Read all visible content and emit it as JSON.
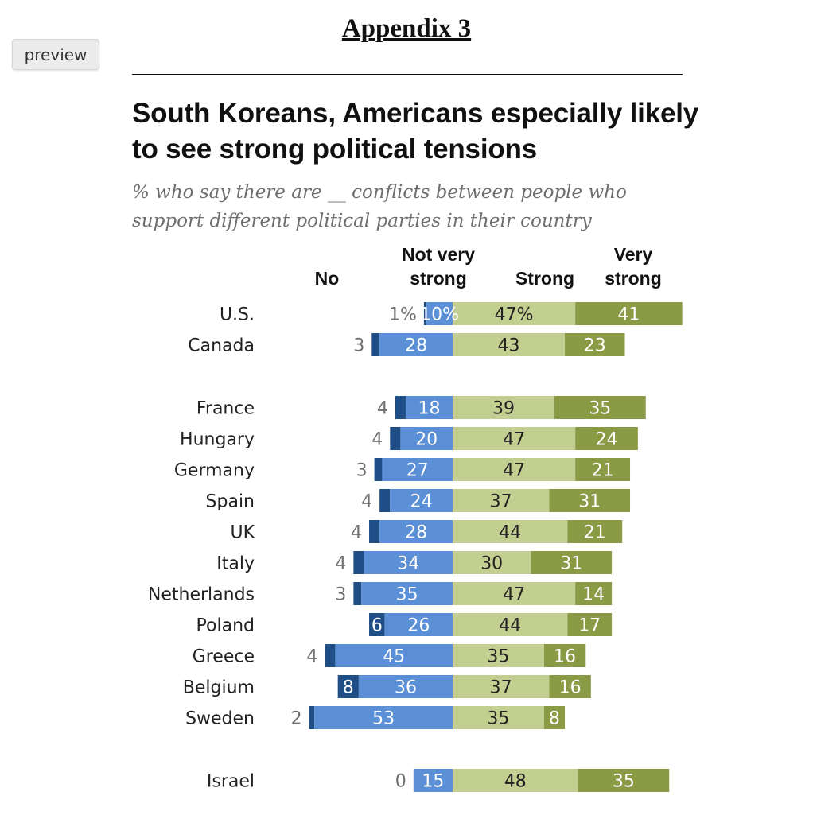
{
  "toolbar": {
    "preview_label": "preview"
  },
  "header": {
    "title": "Appendix 3"
  },
  "colors": {
    "no": "#1f4e86",
    "not_very_strong": "#5b8fd6",
    "strong": "#c3cf90",
    "very_strong": "#8a9a45",
    "no_label": "#707070"
  },
  "chart_data": {
    "type": "bar",
    "title": "South Koreans, Americans especially likely to see strong political tensions",
    "subtitle": "% who say there are __ conflicts between people who support different political parties in their country",
    "legend": [
      "No",
      "Not very strong",
      "Strong",
      "Very strong"
    ],
    "categories": [
      "U.S.",
      "Canada",
      "France",
      "Hungary",
      "Germany",
      "Spain",
      "UK",
      "Italy",
      "Netherlands",
      "Poland",
      "Greece",
      "Belgium",
      "Sweden",
      "Israel"
    ],
    "series": [
      {
        "name": "No",
        "values": [
          1,
          3,
          4,
          4,
          3,
          4,
          4,
          4,
          3,
          6,
          4,
          8,
          2,
          0
        ]
      },
      {
        "name": "Not very strong",
        "values": [
          10,
          28,
          18,
          20,
          27,
          24,
          28,
          34,
          35,
          26,
          45,
          36,
          53,
          15
        ]
      },
      {
        "name": "Strong",
        "values": [
          47,
          43,
          39,
          47,
          47,
          37,
          44,
          30,
          47,
          44,
          35,
          37,
          35,
          48
        ]
      },
      {
        "name": "Very strong",
        "values": [
          41,
          23,
          35,
          24,
          21,
          31,
          21,
          31,
          14,
          17,
          16,
          16,
          8,
          35
        ]
      }
    ],
    "labels": [
      [
        "1%",
        "10%",
        "47%",
        "41"
      ],
      [
        "3",
        "28",
        "43",
        "23"
      ],
      [
        "4",
        "18",
        "39",
        "35"
      ],
      [
        "4",
        "20",
        "47",
        "24"
      ],
      [
        "3",
        "27",
        "47",
        "21"
      ],
      [
        "4",
        "24",
        "37",
        "31"
      ],
      [
        "4",
        "28",
        "44",
        "21"
      ],
      [
        "4",
        "34",
        "30",
        "31"
      ],
      [
        "3",
        "35",
        "47",
        "14"
      ],
      [
        "6",
        "26",
        "44",
        "17"
      ],
      [
        "4",
        "45",
        "35",
        "16"
      ],
      [
        "8",
        "36",
        "37",
        "16"
      ],
      [
        "2",
        "53",
        "35",
        "8"
      ],
      [
        "0",
        "15",
        "48",
        "35"
      ]
    ],
    "groups": [
      [
        0,
        1
      ],
      [
        2,
        3,
        4,
        5,
        6,
        7,
        8,
        9,
        10,
        11,
        12
      ],
      [
        13
      ]
    ]
  }
}
